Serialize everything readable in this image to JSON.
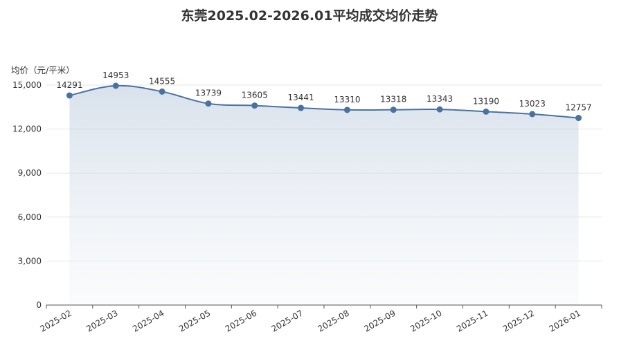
{
  "chart_data": {
    "type": "area",
    "title": "东莞2025.02-2026.01平均成交均价走势",
    "ylabel": "均价（元/平米）",
    "xlabel": "",
    "categories": [
      "2025-02",
      "2025-03",
      "2025-04",
      "2025-05",
      "2025-06",
      "2025-07",
      "2025-08",
      "2025-09",
      "2025-10",
      "2025-11",
      "2025-12",
      "2026-01"
    ],
    "values": [
      14291,
      14953,
      14555,
      13739,
      13605,
      13441,
      13310,
      13318,
      13343,
      13190,
      13023,
      12757
    ],
    "data_labels": [
      "14291",
      "14953",
      "14555",
      "13739",
      "13605",
      "13441",
      "13310",
      "13318",
      "13343",
      "13190",
      "13023",
      "12757"
    ],
    "y_ticks": [
      "0",
      "3,000",
      "6,000",
      "9,000",
      "12,000",
      "15,000"
    ],
    "ylim": [
      0,
      15000
    ],
    "grid": true,
    "smooth": true,
    "colors": {
      "line": "#4a72a0",
      "marker": "#4a72a0",
      "area_top": "#b9c9dc",
      "area_bottom": "#f2f5f9",
      "grid": "#e6e6e6",
      "axis": "#555555",
      "text": "#333333"
    }
  }
}
